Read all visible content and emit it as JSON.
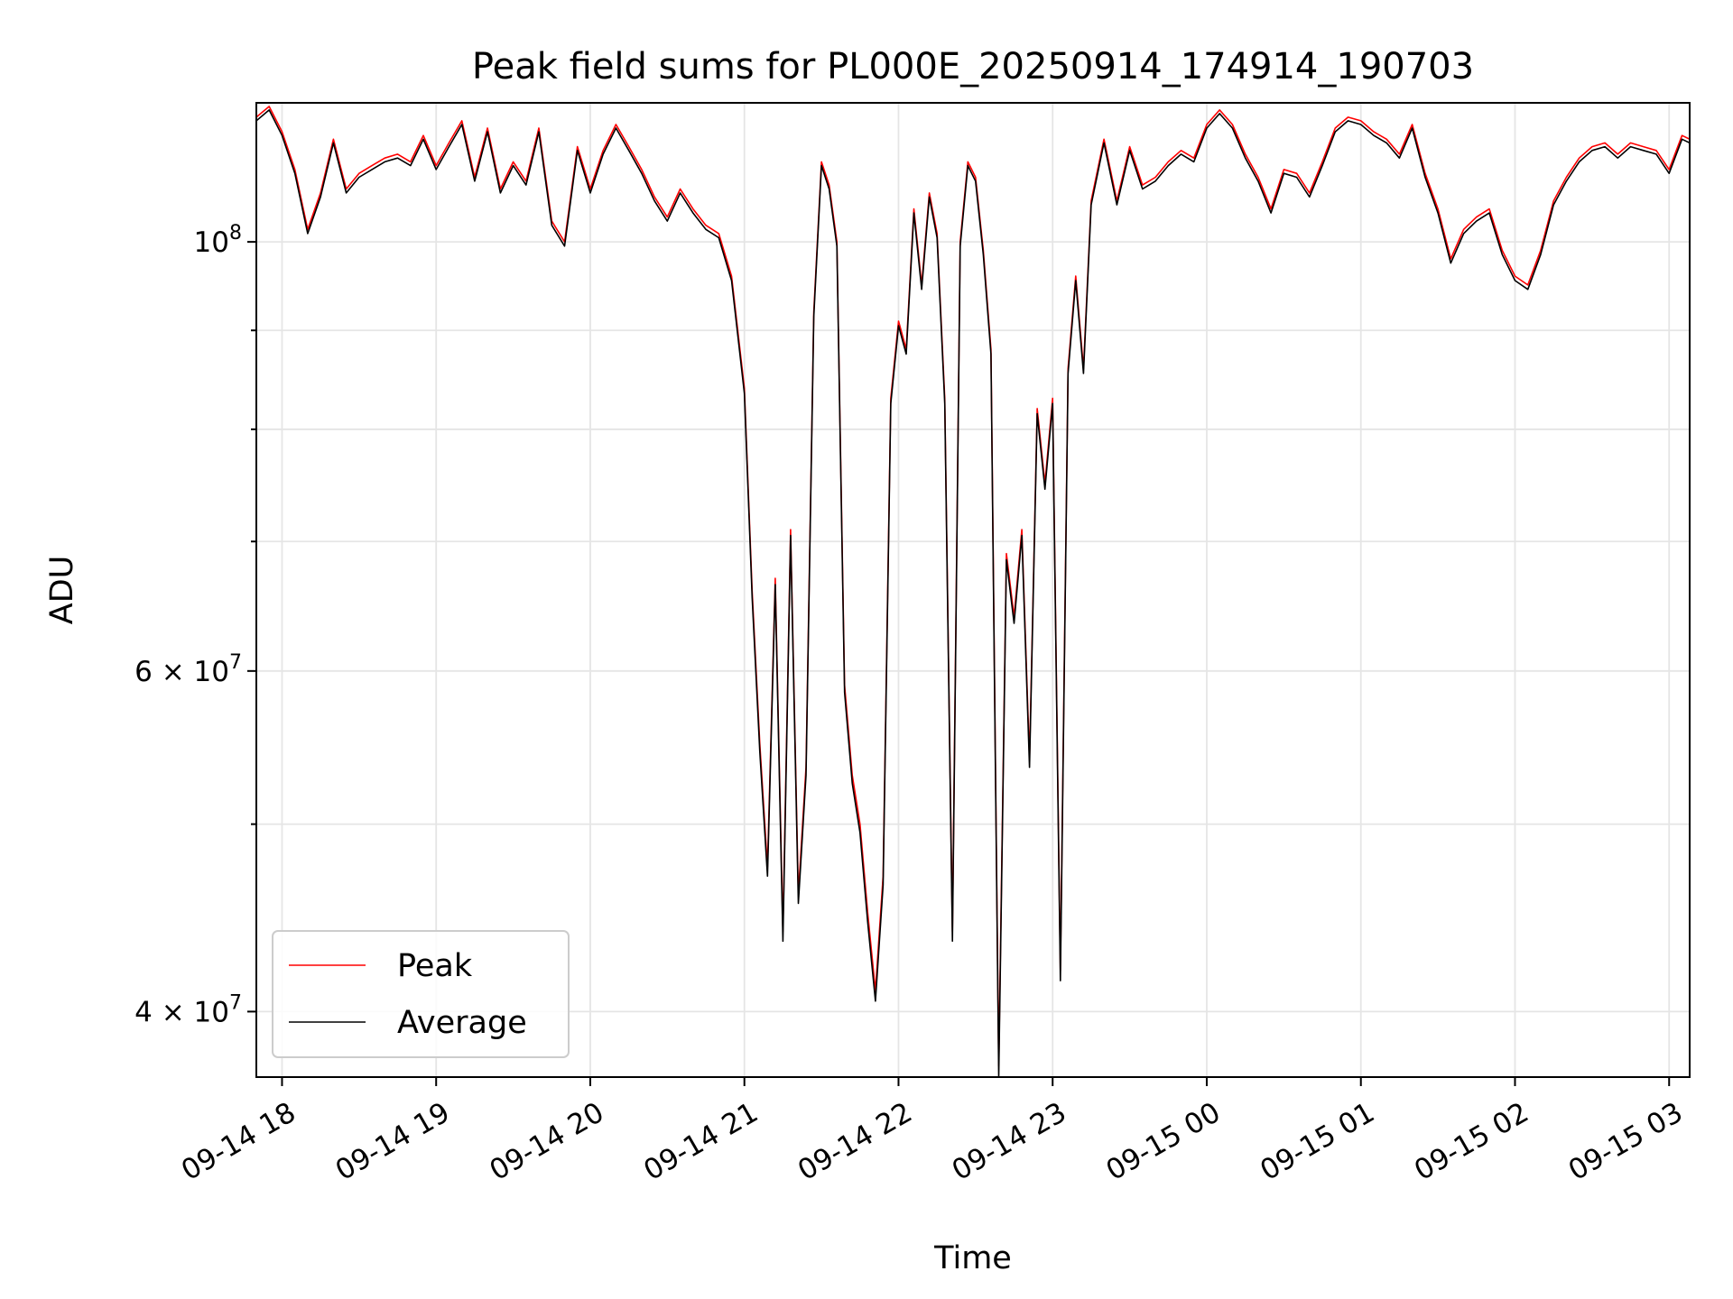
{
  "chart_data": {
    "type": "line",
    "title": "Peak field sums for PL000E_20250914_174914_190703",
    "xlabel": "Time",
    "ylabel": "ADU",
    "yscale": "log",
    "ylim": [
      37000000,
      118000000
    ],
    "xlim": [
      "2025-09-14 17:50",
      "2025-09-15 03:08"
    ],
    "x_ticks": [
      "09-14 18",
      "09-14 19",
      "09-14 20",
      "09-14 21",
      "09-14 22",
      "09-14 23",
      "09-15 00",
      "09-15 01",
      "09-15 02",
      "09-15 03"
    ],
    "y_tick_labels": [
      "10^8",
      "6 × 10^7",
      "4 × 10^7"
    ],
    "y_ticks_major": [
      100000000,
      60000000,
      40000000
    ],
    "y_ticks_minor": [
      90000000,
      80000000,
      70000000,
      50000000
    ],
    "grid": true,
    "legend": {
      "location": "lower left"
    },
    "series": [
      {
        "name": "Peak",
        "color": "#ff0000",
        "x": [
          "2025-09-14 17:50",
          "2025-09-14 17:55",
          "2025-09-14 18:00",
          "2025-09-14 18:05",
          "2025-09-14 18:10",
          "2025-09-14 18:15",
          "2025-09-14 18:20",
          "2025-09-14 18:25",
          "2025-09-14 18:30",
          "2025-09-14 18:35",
          "2025-09-14 18:40",
          "2025-09-14 18:45",
          "2025-09-14 18:50",
          "2025-09-14 18:55",
          "2025-09-14 19:00",
          "2025-09-14 19:05",
          "2025-09-14 19:10",
          "2025-09-14 19:15",
          "2025-09-14 19:20",
          "2025-09-14 19:25",
          "2025-09-14 19:30",
          "2025-09-14 19:35",
          "2025-09-14 19:40",
          "2025-09-14 19:45",
          "2025-09-14 19:50",
          "2025-09-14 19:55",
          "2025-09-14 20:00",
          "2025-09-14 20:05",
          "2025-09-14 20:10",
          "2025-09-14 20:15",
          "2025-09-14 20:20",
          "2025-09-14 20:25",
          "2025-09-14 20:30",
          "2025-09-14 20:35",
          "2025-09-14 20:40",
          "2025-09-14 20:45",
          "2025-09-14 20:50",
          "2025-09-14 20:55",
          "2025-09-14 21:00",
          "2025-09-14 21:03",
          "2025-09-14 21:06",
          "2025-09-14 21:09",
          "2025-09-14 21:12",
          "2025-09-14 21:15",
          "2025-09-14 21:18",
          "2025-09-14 21:21",
          "2025-09-14 21:24",
          "2025-09-14 21:27",
          "2025-09-14 21:30",
          "2025-09-14 21:33",
          "2025-09-14 21:36",
          "2025-09-14 21:39",
          "2025-09-14 21:42",
          "2025-09-14 21:45",
          "2025-09-14 21:48",
          "2025-09-14 21:51",
          "2025-09-14 21:54",
          "2025-09-14 21:57",
          "2025-09-14 22:00",
          "2025-09-14 22:03",
          "2025-09-14 22:06",
          "2025-09-14 22:09",
          "2025-09-14 22:12",
          "2025-09-14 22:15",
          "2025-09-14 22:18",
          "2025-09-14 22:21",
          "2025-09-14 22:24",
          "2025-09-14 22:27",
          "2025-09-14 22:30",
          "2025-09-14 22:33",
          "2025-09-14 22:36",
          "2025-09-14 22:39",
          "2025-09-14 22:42",
          "2025-09-14 22:45",
          "2025-09-14 22:48",
          "2025-09-14 22:51",
          "2025-09-14 22:54",
          "2025-09-14 22:57",
          "2025-09-14 23:00",
          "2025-09-14 23:03",
          "2025-09-14 23:06",
          "2025-09-14 23:09",
          "2025-09-14 23:12",
          "2025-09-14 23:15",
          "2025-09-14 23:20",
          "2025-09-14 23:25",
          "2025-09-14 23:30",
          "2025-09-14 23:35",
          "2025-09-14 23:40",
          "2025-09-14 23:45",
          "2025-09-14 23:50",
          "2025-09-14 23:55",
          "2025-09-15 00:00",
          "2025-09-15 00:05",
          "2025-09-15 00:10",
          "2025-09-15 00:15",
          "2025-09-15 00:20",
          "2025-09-15 00:25",
          "2025-09-15 00:30",
          "2025-09-15 00:35",
          "2025-09-15 00:40",
          "2025-09-15 00:45",
          "2025-09-15 00:50",
          "2025-09-15 00:55",
          "2025-09-15 01:00",
          "2025-09-15 01:05",
          "2025-09-15 01:10",
          "2025-09-15 01:15",
          "2025-09-15 01:20",
          "2025-09-15 01:25",
          "2025-09-15 01:30",
          "2025-09-15 01:35",
          "2025-09-15 01:40",
          "2025-09-15 01:45",
          "2025-09-15 01:50",
          "2025-09-15 01:55",
          "2025-09-15 02:00",
          "2025-09-15 02:05",
          "2025-09-15 02:10",
          "2025-09-15 02:15",
          "2025-09-15 02:20",
          "2025-09-15 02:25",
          "2025-09-15 02:30",
          "2025-09-15 02:35",
          "2025-09-15 02:40",
          "2025-09-15 02:45",
          "2025-09-15 02:50",
          "2025-09-15 02:55",
          "2025-09-15 03:00",
          "2025-09-15 03:05",
          "2025-09-15 03:08"
        ],
        "values": [
          116000000,
          117500000,
          114000000,
          109000000,
          101500000,
          106000000,
          113000000,
          106500000,
          108500000,
          109500000,
          110500000,
          111000000,
          110000000,
          113500000,
          109500000,
          112500000,
          115500000,
          108000000,
          114500000,
          106500000,
          110000000,
          107500000,
          114500000,
          102500000,
          100000000,
          112000000,
          106500000,
          111500000,
          115000000,
          112000000,
          109000000,
          105500000,
          103000000,
          106500000,
          104000000,
          102000000,
          101000000,
          96000000,
          84000000,
          66000000,
          55000000,
          47500000,
          67000000,
          44000000,
          71000000,
          46000000,
          53500000,
          92000000,
          110000000,
          107000000,
          100000000,
          59000000,
          53000000,
          50000000,
          45000000,
          41000000,
          47000000,
          83000000,
          91000000,
          88000000,
          104000000,
          95000000,
          106000000,
          101000000,
          83000000,
          44000000,
          100000000,
          110000000,
          108000000,
          99000000,
          88000000,
          37500000,
          69000000,
          64000000,
          71000000,
          54000000,
          82000000,
          75000000,
          83000000,
          42000000,
          86000000,
          96000000,
          86000000,
          105000000,
          113000000,
          105000000,
          112000000,
          107000000,
          108000000,
          110000000,
          111500000,
          110500000,
          115000000,
          117000000,
          115000000,
          111000000,
          108000000,
          104000000,
          109000000,
          108500000,
          106000000,
          110000000,
          114500000,
          116000000,
          115500000,
          114000000,
          113000000,
          111000000,
          115000000,
          108500000,
          104000000,
          98000000,
          101500000,
          103000000,
          104000000,
          99000000,
          96000000,
          95000000,
          99000000,
          105000000,
          108000000,
          110500000,
          112000000,
          112500000,
          111000000,
          112500000,
          112000000,
          111500000,
          109000000,
          113500000,
          113000000
        ]
      },
      {
        "name": "Average",
        "color": "#000000",
        "x": [
          "2025-09-14 17:50",
          "2025-09-14 17:55",
          "2025-09-14 18:00",
          "2025-09-14 18:05",
          "2025-09-14 18:10",
          "2025-09-14 18:15",
          "2025-09-14 18:20",
          "2025-09-14 18:25",
          "2025-09-14 18:30",
          "2025-09-14 18:35",
          "2025-09-14 18:40",
          "2025-09-14 18:45",
          "2025-09-14 18:50",
          "2025-09-14 18:55",
          "2025-09-14 19:00",
          "2025-09-14 19:05",
          "2025-09-14 19:10",
          "2025-09-14 19:15",
          "2025-09-14 19:20",
          "2025-09-14 19:25",
          "2025-09-14 19:30",
          "2025-09-14 19:35",
          "2025-09-14 19:40",
          "2025-09-14 19:45",
          "2025-09-14 19:50",
          "2025-09-14 19:55",
          "2025-09-14 20:00",
          "2025-09-14 20:05",
          "2025-09-14 20:10",
          "2025-09-14 20:15",
          "2025-09-14 20:20",
          "2025-09-14 20:25",
          "2025-09-14 20:30",
          "2025-09-14 20:35",
          "2025-09-14 20:40",
          "2025-09-14 20:45",
          "2025-09-14 20:50",
          "2025-09-14 20:55",
          "2025-09-14 21:00",
          "2025-09-14 21:03",
          "2025-09-14 21:06",
          "2025-09-14 21:09",
          "2025-09-14 21:12",
          "2025-09-14 21:15",
          "2025-09-14 21:18",
          "2025-09-14 21:21",
          "2025-09-14 21:24",
          "2025-09-14 21:27",
          "2025-09-14 21:30",
          "2025-09-14 21:33",
          "2025-09-14 21:36",
          "2025-09-14 21:39",
          "2025-09-14 21:42",
          "2025-09-14 21:45",
          "2025-09-14 21:48",
          "2025-09-14 21:51",
          "2025-09-14 21:54",
          "2025-09-14 21:57",
          "2025-09-14 22:00",
          "2025-09-14 22:03",
          "2025-09-14 22:06",
          "2025-09-14 22:09",
          "2025-09-14 22:12",
          "2025-09-14 22:15",
          "2025-09-14 22:18",
          "2025-09-14 22:21",
          "2025-09-14 22:24",
          "2025-09-14 22:27",
          "2025-09-14 22:30",
          "2025-09-14 22:33",
          "2025-09-14 22:36",
          "2025-09-14 22:39",
          "2025-09-14 22:42",
          "2025-09-14 22:45",
          "2025-09-14 22:48",
          "2025-09-14 22:51",
          "2025-09-14 22:54",
          "2025-09-14 22:57",
          "2025-09-14 23:00",
          "2025-09-14 23:03",
          "2025-09-14 23:06",
          "2025-09-14 23:09",
          "2025-09-14 23:12",
          "2025-09-14 23:15",
          "2025-09-14 23:20",
          "2025-09-14 23:25",
          "2025-09-14 23:30",
          "2025-09-14 23:35",
          "2025-09-14 23:40",
          "2025-09-14 23:45",
          "2025-09-14 23:50",
          "2025-09-14 23:55",
          "2025-09-15 00:00",
          "2025-09-15 00:05",
          "2025-09-15 00:10",
          "2025-09-15 00:15",
          "2025-09-15 00:20",
          "2025-09-15 00:25",
          "2025-09-15 00:30",
          "2025-09-15 00:35",
          "2025-09-15 00:40",
          "2025-09-15 00:45",
          "2025-09-15 00:50",
          "2025-09-15 00:55",
          "2025-09-15 01:00",
          "2025-09-15 01:05",
          "2025-09-15 01:10",
          "2025-09-15 01:15",
          "2025-09-15 01:20",
          "2025-09-15 01:25",
          "2025-09-15 01:30",
          "2025-09-15 01:35",
          "2025-09-15 01:40",
          "2025-09-15 01:45",
          "2025-09-15 01:50",
          "2025-09-15 01:55",
          "2025-09-15 02:00",
          "2025-09-15 02:05",
          "2025-09-15 02:10",
          "2025-09-15 02:15",
          "2025-09-15 02:20",
          "2025-09-15 02:25",
          "2025-09-15 02:30",
          "2025-09-15 02:35",
          "2025-09-15 02:40",
          "2025-09-15 02:45",
          "2025-09-15 02:50",
          "2025-09-15 02:55",
          "2025-09-15 03:00",
          "2025-09-15 03:05",
          "2025-09-15 03:08"
        ],
        "values": [
          115500000,
          117000000,
          113500000,
          108500000,
          101000000,
          105500000,
          112500000,
          106000000,
          108000000,
          109000000,
          110000000,
          110500000,
          109500000,
          113000000,
          109000000,
          112000000,
          115000000,
          107500000,
          114000000,
          106000000,
          109500000,
          107000000,
          114000000,
          102000000,
          99500000,
          111500000,
          106000000,
          111000000,
          114500000,
          111500000,
          108500000,
          105000000,
          102500000,
          106000000,
          103500000,
          101500000,
          100500000,
          95500000,
          83500000,
          65500000,
          54500000,
          47000000,
          66500000,
          43500000,
          70500000,
          45500000,
          53000000,
          91500000,
          109500000,
          106500000,
          99500000,
          58500000,
          52500000,
          49500000,
          44500000,
          40500000,
          46500000,
          82500000,
          90500000,
          87500000,
          103500000,
          94500000,
          105500000,
          100500000,
          82500000,
          43500000,
          99500000,
          109500000,
          107500000,
          98500000,
          87500000,
          37000000,
          68500000,
          63500000,
          70500000,
          53500000,
          81500000,
          74500000,
          82500000,
          41500000,
          85500000,
          95500000,
          85500000,
          104500000,
          112500000,
          104500000,
          111500000,
          106500000,
          107500000,
          109500000,
          111000000,
          110000000,
          114500000,
          116500000,
          114500000,
          110500000,
          107500000,
          103500000,
          108500000,
          108000000,
          105500000,
          109500000,
          114000000,
          115500000,
          115000000,
          113500000,
          112500000,
          110500000,
          114500000,
          108000000,
          103500000,
          97500000,
          101000000,
          102500000,
          103500000,
          98500000,
          95500000,
          94500000,
          98500000,
          104500000,
          107500000,
          110000000,
          111500000,
          112000000,
          110500000,
          112000000,
          111500000,
          111000000,
          108500000,
          113000000,
          112500000
        ]
      }
    ]
  }
}
